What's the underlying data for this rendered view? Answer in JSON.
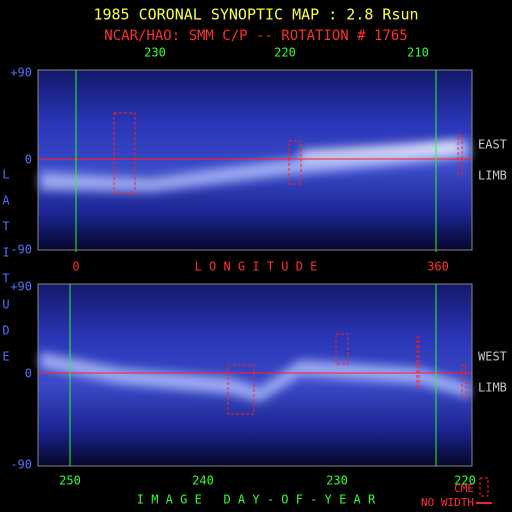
{
  "title": "1985 CORONAL SYNOPTIC MAP : 2.8 Rsun",
  "subtitle": "NCAR/HAO: SMM C/P -- ROTATION # 1765",
  "top_panel": {
    "top_ticks": [
      "230",
      "220",
      "210"
    ],
    "lat_ticks": [
      "+90",
      "0",
      "-90"
    ],
    "side_label": [
      "EAST",
      "LIMB"
    ],
    "bottom_ticks": [
      "0",
      "360"
    ],
    "axis_label": "L O N G I T U D E"
  },
  "lat_label": [
    "L",
    "A",
    "T",
    "I",
    "T",
    "U",
    "D",
    "E"
  ],
  "bottom_panel": {
    "lat_ticks": [
      "+90",
      "0",
      "-90"
    ],
    "side_label": [
      "WEST",
      "LIMB"
    ],
    "bottom_ticks": [
      "250",
      "240",
      "230",
      "220"
    ],
    "axis_label": "I M A G E   D A Y - O F - Y E A R"
  },
  "legend": {
    "cme": "CME",
    "no_width": "NO WIDTH"
  }
}
